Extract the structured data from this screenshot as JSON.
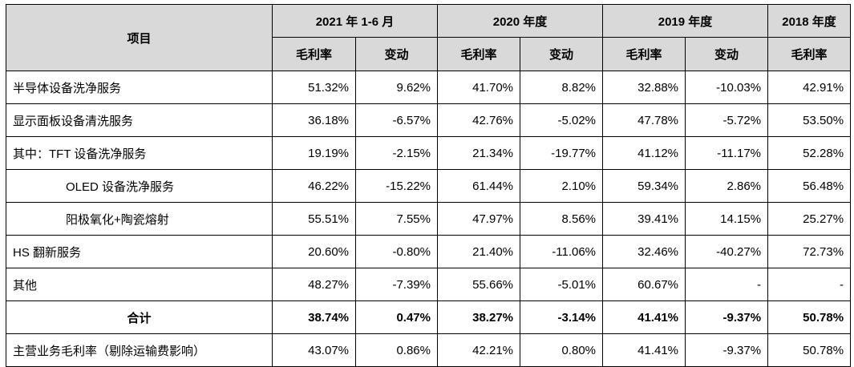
{
  "header": {
    "item": "项目",
    "periods": [
      "2021 年 1-6 月",
      "2020 年度",
      "2019 年度",
      "2018 年度"
    ],
    "sub": {
      "margin": "毛利率",
      "change": "变动"
    }
  },
  "rows": [
    {
      "label": "半导体设备洗净服务",
      "v": [
        "51.32%",
        "9.62%",
        "41.70%",
        "8.82%",
        "32.88%",
        "-10.03%",
        "42.91%"
      ]
    },
    {
      "label": "显示面板设备清洗服务",
      "v": [
        "36.18%",
        "-6.57%",
        "42.76%",
        "-5.02%",
        "47.78%",
        "-5.72%",
        "53.50%"
      ]
    },
    {
      "label": "其中：TFT 设备洗净服务",
      "v": [
        "19.19%",
        "-2.15%",
        "21.34%",
        "-19.77%",
        "41.12%",
        "-11.17%",
        "52.28%"
      ]
    },
    {
      "label": "OLED 设备洗净服务",
      "v": [
        "46.22%",
        "-15.22%",
        "61.44%",
        "2.10%",
        "59.34%",
        "2.86%",
        "56.48%"
      ]
    },
    {
      "label": "阳极氧化+陶瓷熔射",
      "v": [
        "55.51%",
        "7.55%",
        "47.97%",
        "8.56%",
        "39.41%",
        "14.15%",
        "25.27%"
      ]
    },
    {
      "label": "HS 翻新服务",
      "v": [
        "20.60%",
        "-0.80%",
        "21.40%",
        "-11.06%",
        "32.46%",
        "-40.27%",
        "72.73%"
      ]
    },
    {
      "label": "其他",
      "v": [
        "48.27%",
        "-7.39%",
        "55.66%",
        "-5.01%",
        "60.67%",
        "-",
        "-"
      ]
    },
    {
      "label": "合计",
      "v": [
        "38.74%",
        "0.47%",
        "38.27%",
        "-3.14%",
        "41.41%",
        "-9.37%",
        "50.78%"
      ]
    },
    {
      "label": "主营业务毛利率（剔除运输费影响）",
      "v": [
        "43.07%",
        "0.86%",
        "42.21%",
        "0.80%",
        "41.41%",
        "-9.37%",
        "50.78%"
      ]
    }
  ]
}
